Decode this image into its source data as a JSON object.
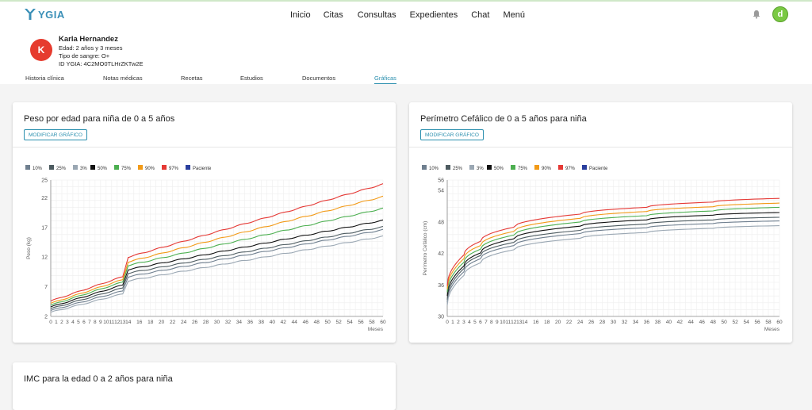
{
  "app": {
    "logo_text": "YGIA"
  },
  "nav": {
    "items": [
      "Inicio",
      "Citas",
      "Consultas",
      "Expedientes",
      "Chat",
      "Menú"
    ]
  },
  "user": {
    "initial": "d"
  },
  "patient": {
    "initial": "K",
    "name": "Karla Hernandez",
    "age": "Edad: 2 años y 3 meses",
    "blood": "Tipo de sangre: O+",
    "id": "ID YGIA: 4C2MO0TLHrZKTw2E"
  },
  "tabs": [
    "Historia clínica",
    "Notas médicas",
    "Recetas",
    "Estudios",
    "Documentos",
    "Gráficas"
  ],
  "active_tab": "Gráficas",
  "modify_label": "MODIFICAR GRÁFICO",
  "legend": [
    {
      "name": "10%",
      "color": "#6f7f8f"
    },
    {
      "name": "25%",
      "color": "#4d5b60"
    },
    {
      "name": "3%",
      "color": "#9aa7b3"
    },
    {
      "name": "50%",
      "color": "#111111"
    },
    {
      "name": "75%",
      "color": "#4caf50"
    },
    {
      "name": "90%",
      "color": "#f29a17"
    },
    {
      "name": "97%",
      "color": "#e53935"
    },
    {
      "name": "Paciente",
      "color": "#2a3f9e"
    }
  ],
  "chart_data": [
    {
      "type": "line",
      "title": "Peso por edad para niña de 0 a 5 años",
      "xlabel": "Meses",
      "ylabel": "Peso (kg)",
      "xlim": [
        0,
        60
      ],
      "ylim": [
        2,
        25
      ],
      "xticks": [
        0,
        1,
        2,
        3,
        4,
        5,
        6,
        7,
        8,
        9,
        10,
        11,
        12,
        13,
        14,
        16,
        18,
        20,
        22,
        24,
        26,
        28,
        30,
        32,
        34,
        36,
        38,
        40,
        42,
        44,
        46,
        48,
        50,
        52,
        54,
        56,
        58,
        60
      ],
      "yticks": [
        2,
        7,
        12,
        17,
        22,
        25
      ],
      "legend_position": "top-left",
      "grid": true,
      "series": [
        {
          "name": "10%",
          "x": [
            0,
            13,
            14,
            60
          ],
          "values": [
            3.0,
            6.3,
            8.7,
            16.6
          ]
        },
        {
          "name": "25%",
          "x": [
            0,
            13,
            14,
            60
          ],
          "values": [
            3.3,
            6.8,
            9.3,
            17.1
          ]
        },
        {
          "name": "3%",
          "x": [
            0,
            13,
            14,
            60
          ],
          "values": [
            2.7,
            5.8,
            8.0,
            15.5
          ]
        },
        {
          "name": "50%",
          "x": [
            0,
            13,
            14,
            60
          ],
          "values": [
            3.6,
            7.3,
            9.9,
            18.2
          ]
        },
        {
          "name": "75%",
          "x": [
            0,
            13,
            14,
            60
          ],
          "values": [
            3.9,
            7.8,
            10.6,
            20.2
          ]
        },
        {
          "name": "90%",
          "x": [
            0,
            13,
            14,
            60
          ],
          "values": [
            4.2,
            8.2,
            11.2,
            22.2
          ]
        },
        {
          "name": "97%",
          "x": [
            0,
            13,
            14,
            60
          ],
          "values": [
            4.6,
            8.7,
            12.0,
            24.3
          ]
        },
        {
          "name": "Paciente",
          "x": [],
          "values": []
        }
      ]
    },
    {
      "type": "line",
      "title": "Perímetro Cefálico de 0 a 5 años para niña",
      "xlabel": "Meses",
      "ylabel": "Perímetro Cefálico (cm)",
      "xlim": [
        0,
        60
      ],
      "ylim": [
        30,
        56
      ],
      "xticks": [
        0,
        1,
        2,
        3,
        4,
        5,
        6,
        7,
        8,
        9,
        10,
        11,
        12,
        13,
        14,
        16,
        18,
        20,
        22,
        24,
        26,
        28,
        30,
        32,
        34,
        36,
        38,
        40,
        42,
        44,
        46,
        48,
        50,
        52,
        54,
        56,
        58,
        60
      ],
      "yticks": [
        30,
        36,
        42,
        48,
        54,
        56
      ],
      "legend_position": "top-left",
      "grid": true,
      "series": [
        {
          "name": "10%",
          "x": [
            0,
            3,
            6,
            12,
            24,
            36,
            48,
            60
          ],
          "values": [
            32.7,
            38.5,
            41.0,
            43.5,
            45.8,
            46.9,
            47.7,
            48.2
          ]
        },
        {
          "name": "25%",
          "x": [
            0,
            3,
            6,
            12,
            24,
            36,
            48,
            60
          ],
          "values": [
            33.2,
            39.1,
            41.6,
            44.1,
            46.4,
            47.6,
            48.4,
            48.9
          ]
        },
        {
          "name": "3%",
          "x": [
            0,
            3,
            6,
            12,
            24,
            36,
            48,
            60
          ],
          "values": [
            32.1,
            37.8,
            40.2,
            42.7,
            44.9,
            46.0,
            46.8,
            47.3
          ]
        },
        {
          "name": "50%",
          "x": [
            0,
            3,
            6,
            12,
            24,
            36,
            48,
            60
          ],
          "values": [
            33.9,
            39.6,
            42.1,
            44.8,
            47.2,
            48.4,
            49.3,
            49.8
          ]
        },
        {
          "name": "75%",
          "x": [
            0,
            3,
            6,
            12,
            24,
            36,
            48,
            60
          ],
          "values": [
            34.6,
            40.3,
            42.8,
            45.5,
            48.0,
            49.2,
            50.1,
            50.8
          ]
        },
        {
          "name": "90%",
          "x": [
            0,
            3,
            6,
            12,
            24,
            36,
            48,
            60
          ],
          "values": [
            35.2,
            41.0,
            43.5,
            46.2,
            48.7,
            50.0,
            50.9,
            51.6
          ]
        },
        {
          "name": "97%",
          "x": [
            0,
            3,
            6,
            12,
            24,
            36,
            48,
            60
          ],
          "values": [
            35.8,
            41.7,
            44.3,
            47.0,
            49.5,
            50.8,
            51.8,
            52.5
          ]
        },
        {
          "name": "Paciente",
          "x": [],
          "values": []
        }
      ]
    }
  ],
  "bottom_card": {
    "title": "IMC para la edad 0 a 2 años para niña"
  }
}
